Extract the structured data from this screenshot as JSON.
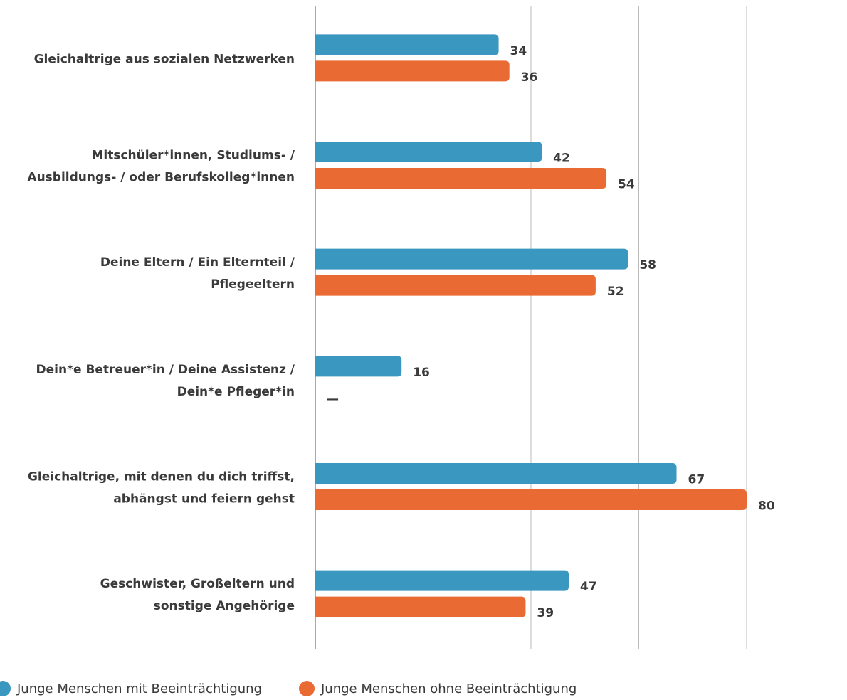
{
  "chart_data": {
    "type": "hbar",
    "categories": [
      "Gleichaltrige aus sozialen Netzwerken",
      "Mitschüler*innen, Studiums- /\nAusbildungs- / oder Berufskolleg*innen",
      "Deine Eltern / Ein Elternteil /\nPflegeeltern",
      "Dein*e Betreuer*in / Deine Assistenz /\nDein*e Pfleger*in",
      "Gleichaltrige, mit denen du dich triffst,\nabhängst und feiern gehst",
      "Geschwister, Großeltern und\nsonstige Angehörige"
    ],
    "series": [
      {
        "name": "Junge Menschen mit Beeinträchtigung",
        "color": "#3a97bf",
        "values": [
          34,
          42,
          58,
          16,
          67,
          47
        ]
      },
      {
        "name": "Junge Menschen ohne Beeinträchtigung",
        "color": "#e96a32",
        "values": [
          36,
          54,
          52,
          null,
          80,
          39
        ],
        "value_labels": [
          "36",
          "54",
          "52",
          "—",
          "80",
          "39"
        ]
      }
    ],
    "xlim": [
      0,
      80
    ],
    "xticks": [
      0,
      20,
      40,
      60,
      80
    ],
    "grid": true,
    "legend": "bottom"
  }
}
